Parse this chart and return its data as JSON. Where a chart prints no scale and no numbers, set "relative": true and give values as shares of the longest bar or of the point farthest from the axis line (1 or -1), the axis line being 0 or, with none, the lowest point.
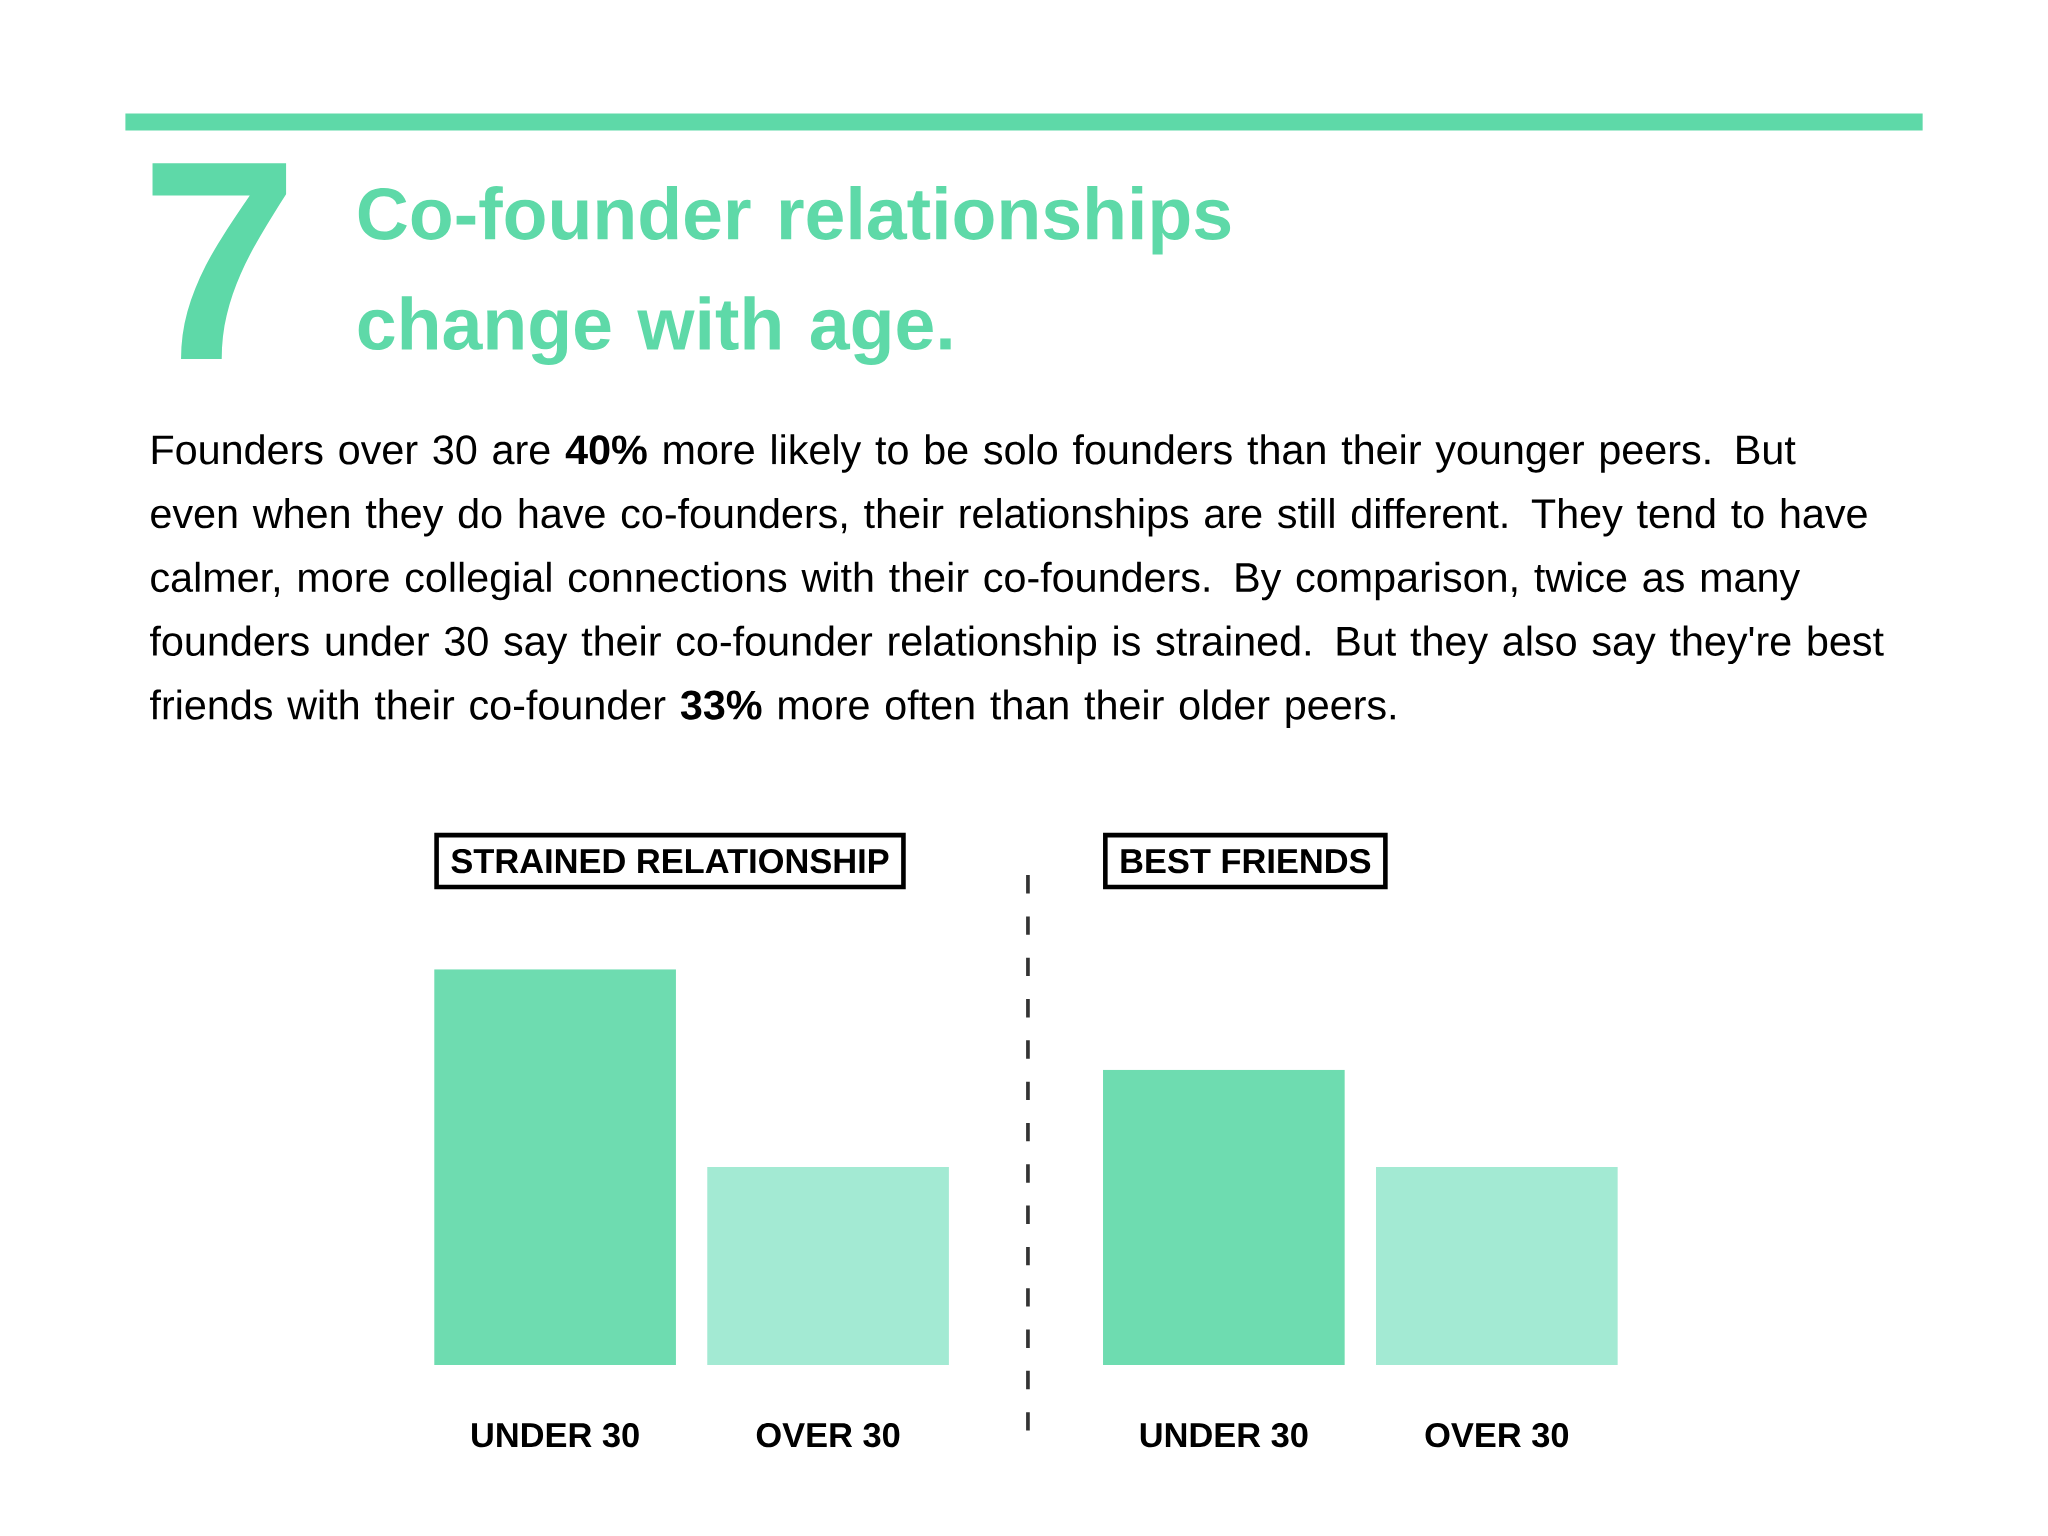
{
  "chart_data": [
    {
      "type": "other",
      "title": "Co-founder relationships change with age.",
      "annotations": [
        "7",
        "Founders over 30 are **40%** more likely to be solo founders than their younger peers. But even when they do have co-founders, their relationships are still different. They tend to have calmer, more collegial connections with their co-founders. By comparison, twice as many founders under 30 say their co-founder relationship is strained. But they also say they're best friends with their co-founder **33%** more often than their older peers."
      ]
    },
    {
      "type": "bar",
      "title": "STRAINED RELATIONSHIP",
      "categories": [
        "UNDER 30",
        "OVER 30"
      ],
      "values": [
        1,
        0.5
      ],
      "colors": [
        "#6edcb0",
        "#a3ead3"
      ],
      "relative": true
    },
    {
      "type": "bar",
      "title": "BEST FRIENDS",
      "categories": [
        "UNDER 30",
        "OVER 30"
      ],
      "values": [
        1,
        0.67
      ],
      "colors": [
        "#6edcb0",
        "#a3ead3"
      ],
      "relative": true
    }
  ]
}
